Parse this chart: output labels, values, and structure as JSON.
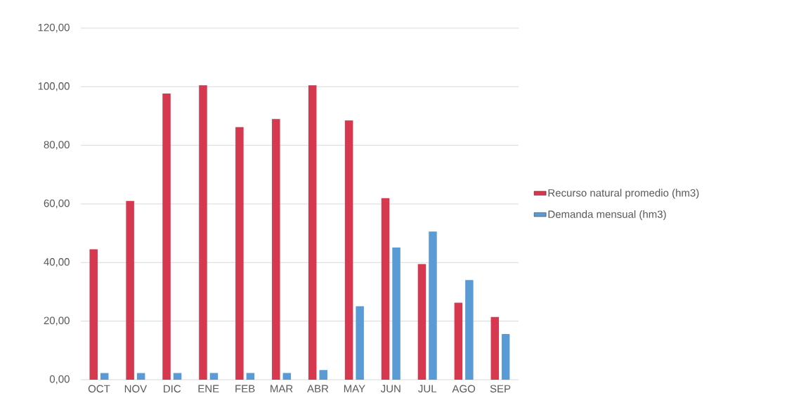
{
  "chart_data": {
    "type": "bar",
    "categories": [
      "OCT",
      "NOV",
      "DIC",
      "ENE",
      "FEB",
      "MAR",
      "ABR",
      "MAY",
      "JUN",
      "JUL",
      "AGO",
      "SEP"
    ],
    "series": [
      {
        "name": "Recurso natural promedio (hm3)",
        "color": "#d6384f",
        "values": [
          44.5,
          61.0,
          97.7,
          100.5,
          86.2,
          89.0,
          100.5,
          88.5,
          62.0,
          39.5,
          26.3,
          21.4
        ]
      },
      {
        "name": "Demanda mensual (hm3)",
        "color": "#5b9bd5",
        "values": [
          2.3,
          2.3,
          2.3,
          2.3,
          2.3,
          2.3,
          3.3,
          25.1,
          45.1,
          50.6,
          34.0,
          15.6
        ]
      }
    ],
    "ylim": [
      0,
      120
    ],
    "yticks": [
      {
        "value": 0,
        "label": "0,00"
      },
      {
        "value": 20,
        "label": "20,00"
      },
      {
        "value": 40,
        "label": "40,00"
      },
      {
        "value": 60,
        "label": "60,00"
      },
      {
        "value": 80,
        "label": "80,00"
      },
      {
        "value": 100,
        "label": "100,00"
      },
      {
        "value": 120,
        "label": "120,00"
      }
    ],
    "grid": "y",
    "legend": "right"
  }
}
